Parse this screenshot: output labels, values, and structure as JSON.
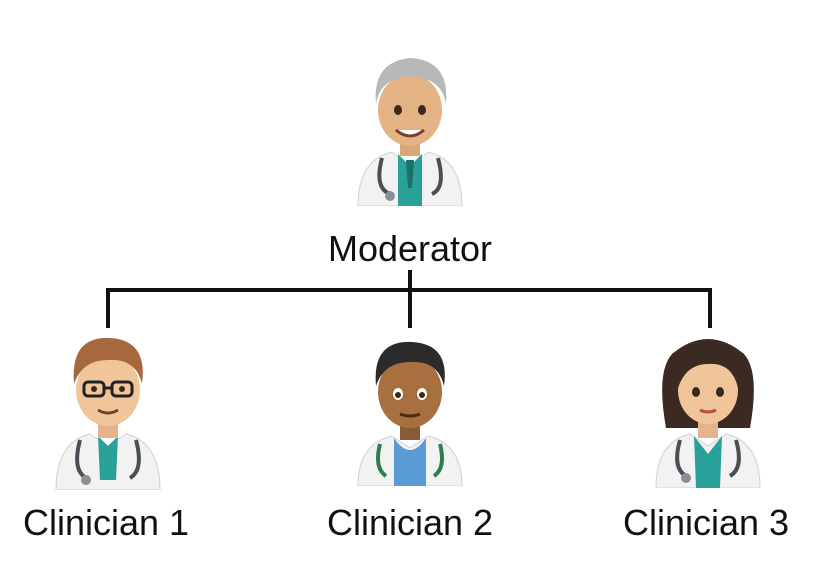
{
  "moderator": {
    "label": "Moderator",
    "icon": "doctor-senior-icon"
  },
  "clinicians": [
    {
      "label": "Clinician 1",
      "icon": "doctor-glasses-icon"
    },
    {
      "label": "Clinician 2",
      "icon": "doctor-man-icon"
    },
    {
      "label": "Clinician 3",
      "icon": "doctor-woman-icon"
    }
  ],
  "colors": {
    "connector": "#111111",
    "coat": "#f4f4f4",
    "teal": "#2aa198",
    "stethoscope": "#4a4f55"
  }
}
